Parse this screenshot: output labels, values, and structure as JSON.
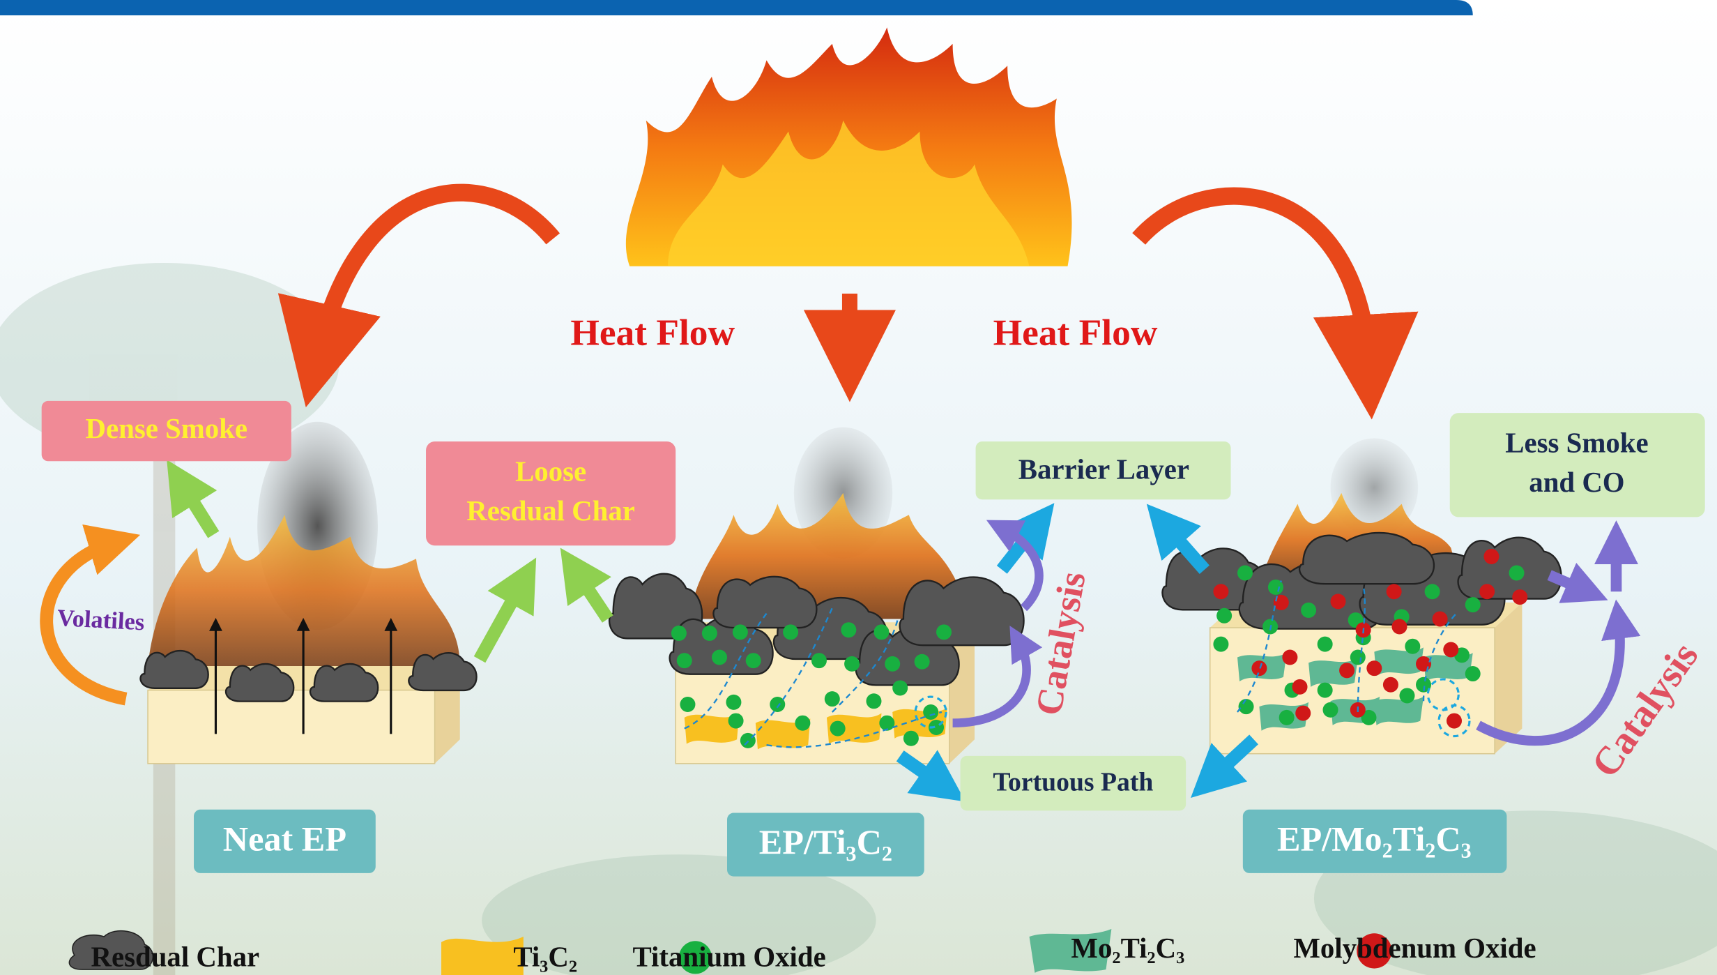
{
  "heat_flow_labels": [
    "Heat Flow",
    "Heat Flow"
  ],
  "callouts": {
    "dense_smoke": "Dense Smoke",
    "volatiles": "Volatiles",
    "loose_char": [
      "Loose",
      "Resdual Char"
    ],
    "barrier_layer": "Barrier Layer",
    "catalysis": [
      "Catalysis",
      "Catalysis"
    ],
    "less_smoke": [
      "Less Smoke",
      "and CO"
    ],
    "tortuous_path": "Tortuous Path"
  },
  "samples": [
    "Neat EP",
    "EP/Ti₃C₂",
    "EP/Mo₂Ti₂C₃"
  ],
  "legend": [
    "Resdual Char",
    "Ti₃C₂",
    "Titanium Oxide",
    "Mo₂Ti₂C₃",
    "Molybdenum Oxide"
  ]
}
